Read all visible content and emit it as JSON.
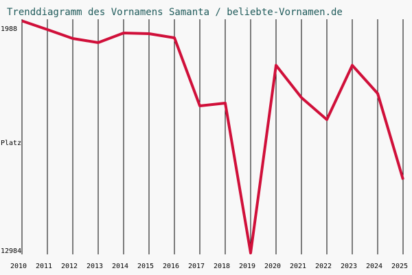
{
  "chart_data": {
    "type": "line",
    "title": "Trenddiagramm des Vornamens Samanta / beliebte-Vornamen.de",
    "y_label": "Platz",
    "categories": [
      "2010",
      "2011",
      "2012",
      "2013",
      "2014",
      "2015",
      "2016",
      "2017",
      "2018",
      "2019",
      "2020",
      "2021",
      "2022",
      "2023",
      "2024",
      "2025"
    ],
    "series": [
      {
        "name": "Samanta",
        "color": "#d0103a",
        "values": [
          2000,
          2408,
          2829,
          3023,
          2570,
          2602,
          2796,
          5998,
          5869,
          12920,
          4090,
          5610,
          6645,
          4090,
          5416,
          9459
        ]
      }
    ],
    "ylim": [
      1988,
      12984
    ],
    "yticks": [
      1988,
      12984
    ],
    "y_inverted": true,
    "grid": true
  }
}
